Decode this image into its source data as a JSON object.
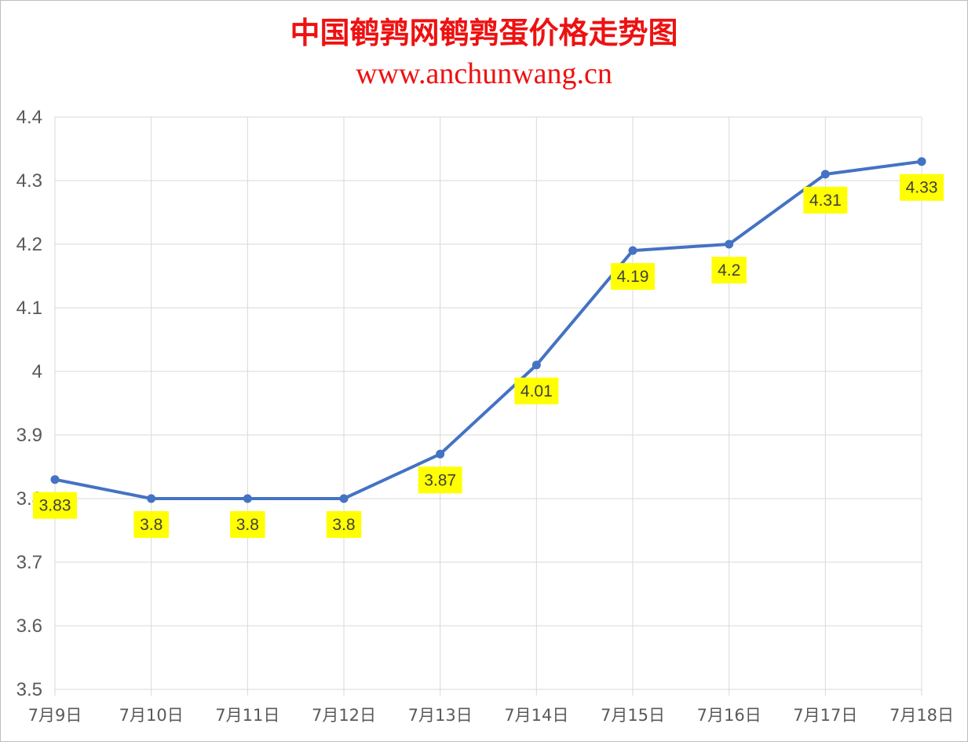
{
  "chart_data": {
    "type": "line",
    "title": "中国鹌鹑网鹌鹑蛋价格走势图",
    "subtitle": "www.anchunwang.cn",
    "categories": [
      "7月9日",
      "7月10日",
      "7月11日",
      "7月12日",
      "7月13日",
      "7月14日",
      "7月15日",
      "7月16日",
      "7月17日",
      "7月18日"
    ],
    "series": [
      {
        "values": [
          3.83,
          3.8,
          3.8,
          3.8,
          3.87,
          4.01,
          4.19,
          4.2,
          4.31,
          4.33
        ]
      }
    ],
    "data_labels": [
      "3.83",
      "3.8",
      "3.8",
      "3.8",
      "3.87",
      "4.01",
      "4.19",
      "4.2",
      "4.31",
      "4.33"
    ],
    "ylim": [
      3.5,
      4.4
    ],
    "yticks": [
      "3.5",
      "3.6",
      "3.7",
      "3.8",
      "3.9",
      "4",
      "4.1",
      "4.2",
      "4.3",
      "4.4"
    ],
    "grid": true,
    "legend": "none",
    "xlabel": "",
    "ylabel": "",
    "colors": {
      "line": "#4472c4",
      "label_bg": "#ffff00",
      "title": "#ee1111",
      "grid": "#d9d9d9"
    }
  }
}
